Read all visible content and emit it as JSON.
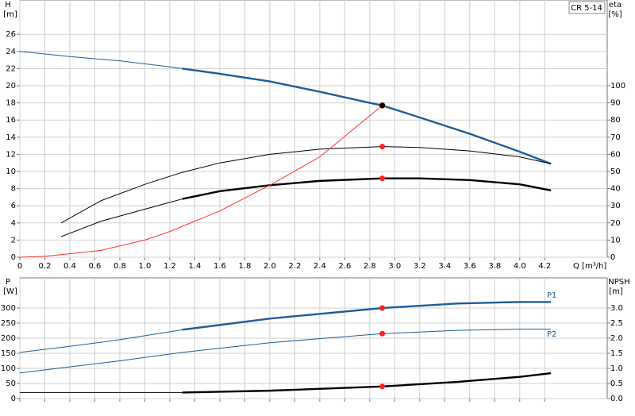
{
  "chart_data": [
    {
      "type": "line",
      "title": "CR 5-14",
      "x_label": "Q [m³/h]",
      "y_label": "H",
      "y_unit": "[m]",
      "y2_label": "eta",
      "y2_unit": "[%]",
      "xlim": [
        0,
        4.7
      ],
      "xticks": [
        0,
        0.2,
        0.4,
        0.6,
        0.8,
        {
          "value": 1,
          "label": "1.0"
        },
        1.2,
        1.4,
        1.6,
        1.8,
        {
          "value": 2,
          "label": "2.0"
        },
        2.2,
        2.4,
        2.6,
        2.8,
        {
          "value": 3,
          "label": "3.0"
        },
        3.2,
        3.4,
        3.6,
        3.8,
        {
          "value": 4,
          "label": "4.0"
        },
        4.2
      ],
      "ylim": [
        0,
        30
      ],
      "yticks": [
        0,
        2,
        4,
        6,
        8,
        10,
        12,
        14,
        16,
        18,
        20,
        22,
        24,
        26
      ],
      "y2lim": [
        0,
        150
      ],
      "y2ticks": [
        0,
        10,
        20,
        30,
        40,
        50,
        60,
        70,
        80,
        90,
        100
      ],
      "grid": true,
      "duty_x": 2.9,
      "series": [
        {
          "color": "#1f5c99",
          "thick_from": 1.3,
          "marker_color": "#ffd700",
          "x": [
            0,
            0.4,
            0.8,
            1.2,
            1.3,
            1.6,
            2.0,
            2.4,
            2.8,
            2.9,
            3.2,
            3.6,
            4.0,
            4.25
          ],
          "values": [
            24.0,
            23.4,
            22.9,
            22.2,
            22.0,
            21.4,
            20.5,
            19.3,
            18.0,
            17.7,
            16.3,
            14.4,
            12.3,
            10.9
          ]
        },
        {
          "color": "#000000",
          "axis": "y2",
          "marker_color": "#ff2020",
          "x": [
            0.33,
            0.65,
            1.0,
            1.3,
            1.6,
            2.0,
            2.4,
            2.9,
            3.2,
            3.6,
            4.0,
            4.25
          ],
          "values": [
            20,
            33,
            42.5,
            49.5,
            55,
            60,
            63,
            64.5,
            64,
            62,
            58.5,
            54.5
          ]
        },
        {
          "color": "#000000",
          "axis": "y2",
          "thick_from": 1.3,
          "marker_color": "#ff2020",
          "x": [
            0.33,
            0.65,
            1.0,
            1.3,
            1.6,
            2.0,
            2.4,
            2.9,
            3.2,
            3.6,
            4.0,
            4.25
          ],
          "values": [
            12,
            21,
            28,
            34,
            38.5,
            42,
            44.5,
            46,
            46,
            45,
            42.5,
            39
          ]
        },
        {
          "color": "#ff3030",
          "x": [
            0,
            0.2,
            0.65,
            1.0,
            1.2,
            1.6,
            2.0,
            2.4,
            2.9
          ],
          "values": [
            0,
            0.1,
            0.8,
            2.0,
            3.0,
            5.4,
            8.4,
            11.7,
            17.7
          ]
        }
      ]
    },
    {
      "type": "line",
      "y_label": "P",
      "y_unit": "[W]",
      "y2_label": "NPSH",
      "y2_unit": "[m]",
      "xlim": [
        0,
        4.7
      ],
      "xticks": [
        0,
        0.2,
        0.4,
        0.6,
        0.8,
        1,
        1.2,
        1.4,
        1.6,
        1.8,
        2,
        2.2,
        2.4,
        2.6,
        2.8,
        3,
        3.2,
        3.4,
        3.6,
        3.8,
        4,
        4.2
      ],
      "ylim": [
        0,
        400
      ],
      "yticks": [
        0,
        50,
        100,
        150,
        200,
        250,
        300
      ],
      "y2lim": [
        0,
        4
      ],
      "y2ticks": [
        {
          "value": 0,
          "label": "0.0"
        },
        0.5,
        {
          "value": 1,
          "label": "1.0"
        },
        1.5,
        {
          "value": 2,
          "label": "2.0"
        },
        2.5,
        {
          "value": 3,
          "label": "3.0"
        }
      ],
      "grid": true,
      "duty_x": 2.9,
      "series": [
        {
          "name": "P1",
          "color": "#1f5c99",
          "thick_from": 1.3,
          "marker_color": "#ff2020",
          "x": [
            0,
            0.4,
            0.8,
            1.3,
            2.0,
            2.9,
            3.5,
            4.0,
            4.25
          ],
          "values": [
            153,
            173,
            195,
            228,
            265,
            300,
            315,
            320,
            320
          ]
        },
        {
          "name": "P2",
          "color": "#1f5c99",
          "marker_color": "#ff2020",
          "x": [
            0,
            0.8,
            1.3,
            2.0,
            2.9,
            3.5,
            4.0,
            4.25
          ],
          "values": [
            85,
            125,
            153,
            185,
            215,
            226,
            230,
            230
          ]
        },
        {
          "color": "#000000",
          "axis": "y2",
          "thick_from": 1.3,
          "marker_color": "#ff2020",
          "x": [
            0,
            1.3,
            2.0,
            2.9,
            3.5,
            4.0,
            4.25
          ],
          "values": [
            0.2,
            0.2,
            0.26,
            0.4,
            0.55,
            0.72,
            0.84
          ]
        }
      ]
    }
  ]
}
